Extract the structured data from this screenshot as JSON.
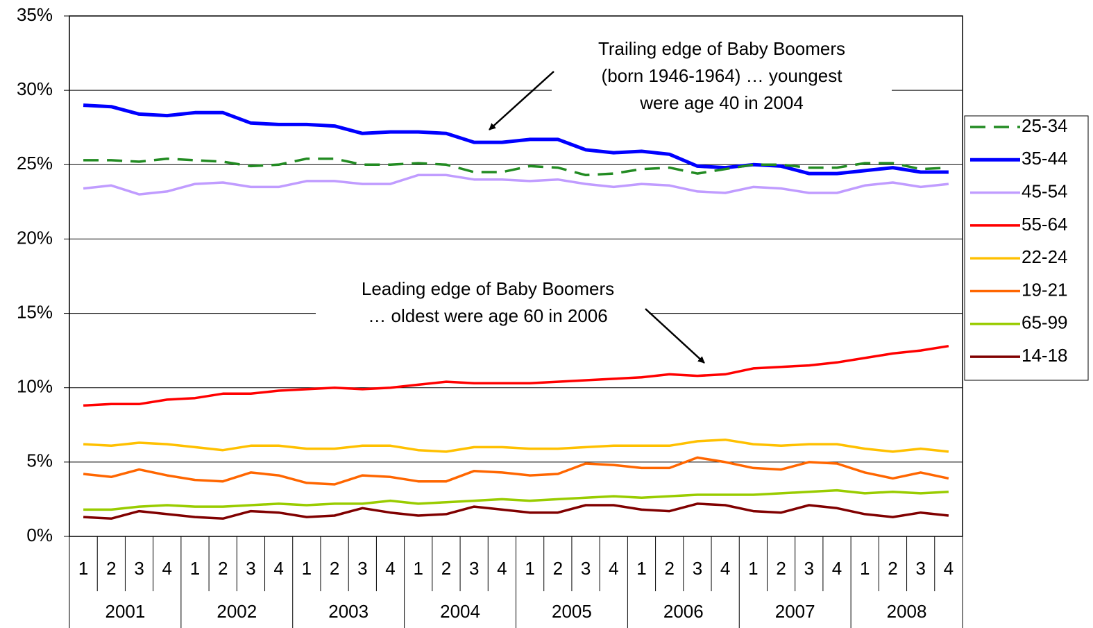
{
  "chart_data": {
    "type": "line",
    "categories": [
      "1",
      "2",
      "3",
      "4",
      "1",
      "2",
      "3",
      "4",
      "1",
      "2",
      "3",
      "4",
      "1",
      "2",
      "3",
      "4",
      "1",
      "2",
      "3",
      "4",
      "1",
      "2",
      "3",
      "4",
      "1",
      "2",
      "3",
      "4",
      "1",
      "2",
      "3",
      "4"
    ],
    "category_groups": [
      "2001",
      "2002",
      "2003",
      "2004",
      "2005",
      "2006",
      "2007",
      "2008"
    ],
    "ylim": [
      0,
      35
    ],
    "yticks": [
      {
        "value": 0,
        "label": "0%"
      },
      {
        "value": 5,
        "label": "5%"
      },
      {
        "value": 10,
        "label": "10%"
      },
      {
        "value": 15,
        "label": "15%"
      },
      {
        "value": 20,
        "label": "20%"
      },
      {
        "value": 25,
        "label": "25%"
      },
      {
        "value": 30,
        "label": "30%"
      },
      {
        "value": 35,
        "label": "35%"
      }
    ],
    "grid": true,
    "legend": "right",
    "series": [
      {
        "name": "25-34",
        "color": "#228B22",
        "style": "dashed",
        "values": [
          25.3,
          25.3,
          25.2,
          25.4,
          25.3,
          25.2,
          24.9,
          25.0,
          25.4,
          25.4,
          25.0,
          25.0,
          25.1,
          25.0,
          24.5,
          24.5,
          24.9,
          24.8,
          24.3,
          24.4,
          24.7,
          24.8,
          24.4,
          24.7,
          25.0,
          25.0,
          24.8,
          24.8,
          25.1,
          25.1,
          24.7,
          24.8
        ]
      },
      {
        "name": "35-44",
        "color": "#0000FF",
        "style": "bold",
        "values": [
          29.0,
          28.9,
          28.4,
          28.3,
          28.5,
          28.5,
          27.8,
          27.7,
          27.7,
          27.6,
          27.1,
          27.2,
          27.2,
          27.1,
          26.5,
          26.5,
          26.7,
          26.7,
          26.0,
          25.8,
          25.9,
          25.7,
          24.9,
          24.8,
          25.0,
          24.9,
          24.4,
          24.4,
          24.6,
          24.8,
          24.5,
          24.5
        ]
      },
      {
        "name": "45-54",
        "color": "#C09CFF",
        "values": [
          23.4,
          23.6,
          23.0,
          23.2,
          23.7,
          23.8,
          23.5,
          23.5,
          23.9,
          23.9,
          23.7,
          23.7,
          24.3,
          24.3,
          24.0,
          24.0,
          23.9,
          24.0,
          23.7,
          23.5,
          23.7,
          23.6,
          23.2,
          23.1,
          23.5,
          23.4,
          23.1,
          23.1,
          23.6,
          23.8,
          23.5,
          23.7
        ]
      },
      {
        "name": "55-64",
        "color": "#FF0000",
        "values": [
          8.8,
          8.9,
          8.9,
          9.2,
          9.3,
          9.6,
          9.6,
          9.8,
          9.9,
          10.0,
          9.9,
          10.0,
          10.2,
          10.4,
          10.3,
          10.3,
          10.3,
          10.4,
          10.5,
          10.6,
          10.7,
          10.9,
          10.8,
          10.9,
          11.3,
          11.4,
          11.5,
          11.7,
          12.0,
          12.3,
          12.5,
          12.8
        ]
      },
      {
        "name": "22-24",
        "color": "#FFC000",
        "values": [
          6.2,
          6.1,
          6.3,
          6.2,
          6.0,
          5.8,
          6.1,
          6.1,
          5.9,
          5.9,
          6.1,
          6.1,
          5.8,
          5.7,
          6.0,
          6.0,
          5.9,
          5.9,
          6.0,
          6.1,
          6.1,
          6.1,
          6.4,
          6.5,
          6.2,
          6.1,
          6.2,
          6.2,
          5.9,
          5.7,
          5.9,
          5.7
        ]
      },
      {
        "name": "19-21",
        "color": "#FF6600",
        "values": [
          4.2,
          4.0,
          4.5,
          4.1,
          3.8,
          3.7,
          4.3,
          4.1,
          3.6,
          3.5,
          4.1,
          4.0,
          3.7,
          3.7,
          4.4,
          4.3,
          4.1,
          4.2,
          4.9,
          4.8,
          4.6,
          4.6,
          5.3,
          5.0,
          4.6,
          4.5,
          5.0,
          4.9,
          4.3,
          3.9,
          4.3,
          3.9
        ]
      },
      {
        "name": "65-99",
        "color": "#99CC00",
        "values": [
          1.8,
          1.8,
          2.0,
          2.1,
          2.0,
          2.0,
          2.1,
          2.2,
          2.1,
          2.2,
          2.2,
          2.4,
          2.2,
          2.3,
          2.4,
          2.5,
          2.4,
          2.5,
          2.6,
          2.7,
          2.6,
          2.7,
          2.8,
          2.8,
          2.8,
          2.9,
          3.0,
          3.1,
          2.9,
          3.0,
          2.9,
          3.0
        ]
      },
      {
        "name": "14-18",
        "color": "#800000",
        "values": [
          1.3,
          1.2,
          1.7,
          1.5,
          1.3,
          1.2,
          1.7,
          1.6,
          1.3,
          1.4,
          1.9,
          1.6,
          1.4,
          1.5,
          2.0,
          1.8,
          1.6,
          1.6,
          2.1,
          2.1,
          1.8,
          1.7,
          2.2,
          2.1,
          1.7,
          1.6,
          2.1,
          1.9,
          1.5,
          1.3,
          1.6,
          1.4
        ]
      }
    ],
    "annotations": [
      {
        "lines": [
          "Trailing edge of Baby Boomers",
          "(born 1946-1964) … youngest",
          "were age 40 in 2004"
        ]
      },
      {
        "lines": [
          "Leading edge of Baby Boomers",
          "… oldest were age 60 in 2006"
        ]
      }
    ]
  }
}
